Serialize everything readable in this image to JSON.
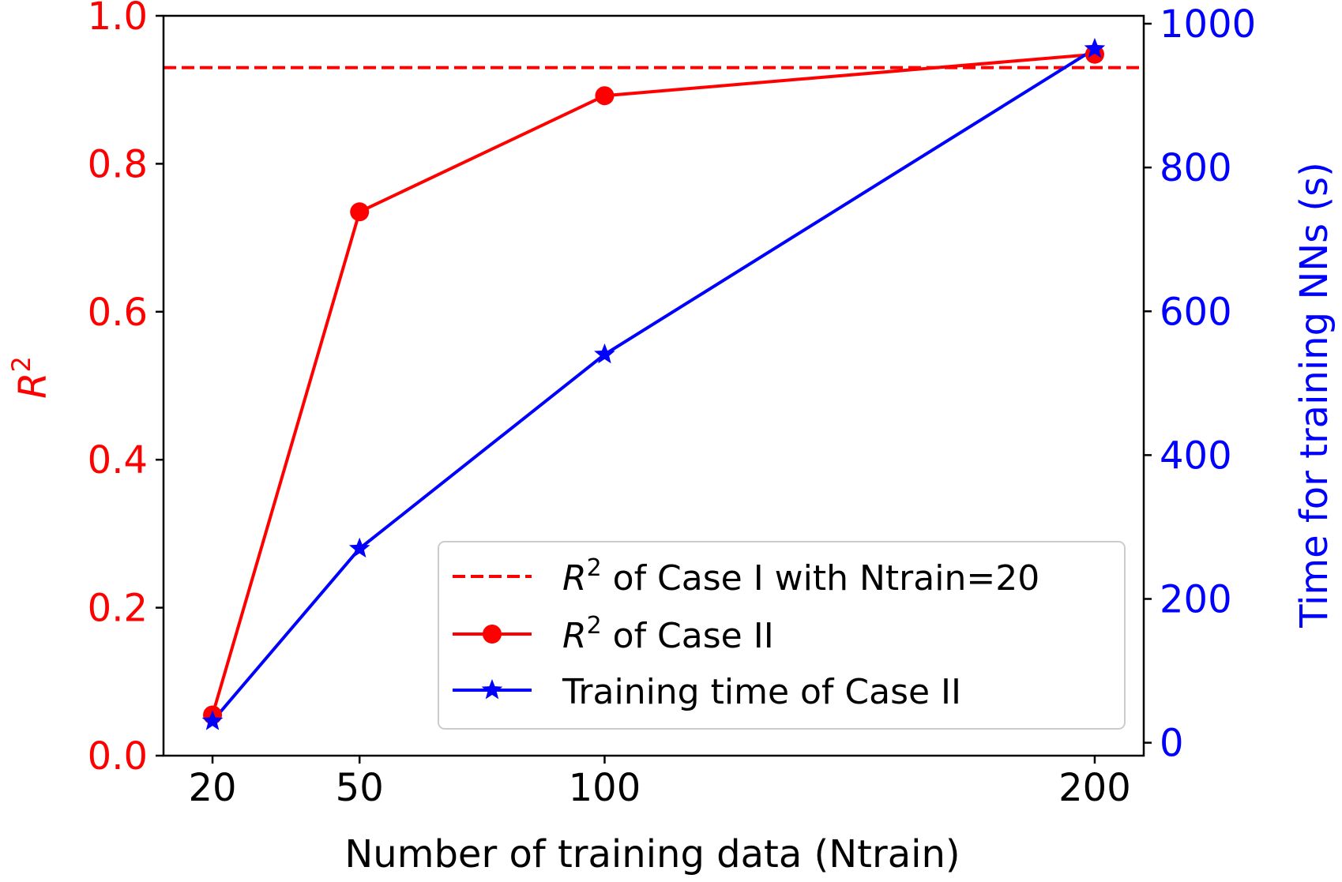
{
  "chart_data": {
    "type": "line",
    "xlabel": "Number of training data (Ntrain)",
    "ylabel_left_base": "R",
    "ylabel_left_sup": "2",
    "ylabel_right": "Time for training NNs (s)",
    "x_ticks": [
      "20",
      "50",
      "100",
      "200"
    ],
    "x_values": [
      20,
      50,
      100,
      200
    ],
    "xlim": [
      10,
      210
    ],
    "ylim_left": [
      0.0,
      1.0
    ],
    "ylim_right": [
      -18,
      1011
    ],
    "y_left_ticks": [
      "0.0",
      "0.2",
      "0.4",
      "0.6",
      "0.8",
      "1.0"
    ],
    "y_right_ticks": [
      "0",
      "200",
      "400",
      "600",
      "800",
      "1000"
    ],
    "reference_line": {
      "y": 0.93
    },
    "series": [
      {
        "axis": "left",
        "values": [
          0.055,
          0.735,
          0.892,
          0.948
        ]
      },
      {
        "axis": "right",
        "values": [
          30,
          270,
          540,
          965
        ]
      }
    ],
    "legend": {
      "location": "lower-right",
      "entries": [
        {
          "pre": "R",
          "sup": "2",
          "post": " of Case I with Ntrain=20"
        },
        {
          "pre": "R",
          "sup": "2",
          "post": " of Case II"
        },
        {
          "pre": "",
          "sup": "",
          "post": "Training time of Case II"
        }
      ]
    },
    "colors": {
      "left": "#ff0000",
      "right": "#0000ff",
      "axis": "#000000"
    }
  }
}
